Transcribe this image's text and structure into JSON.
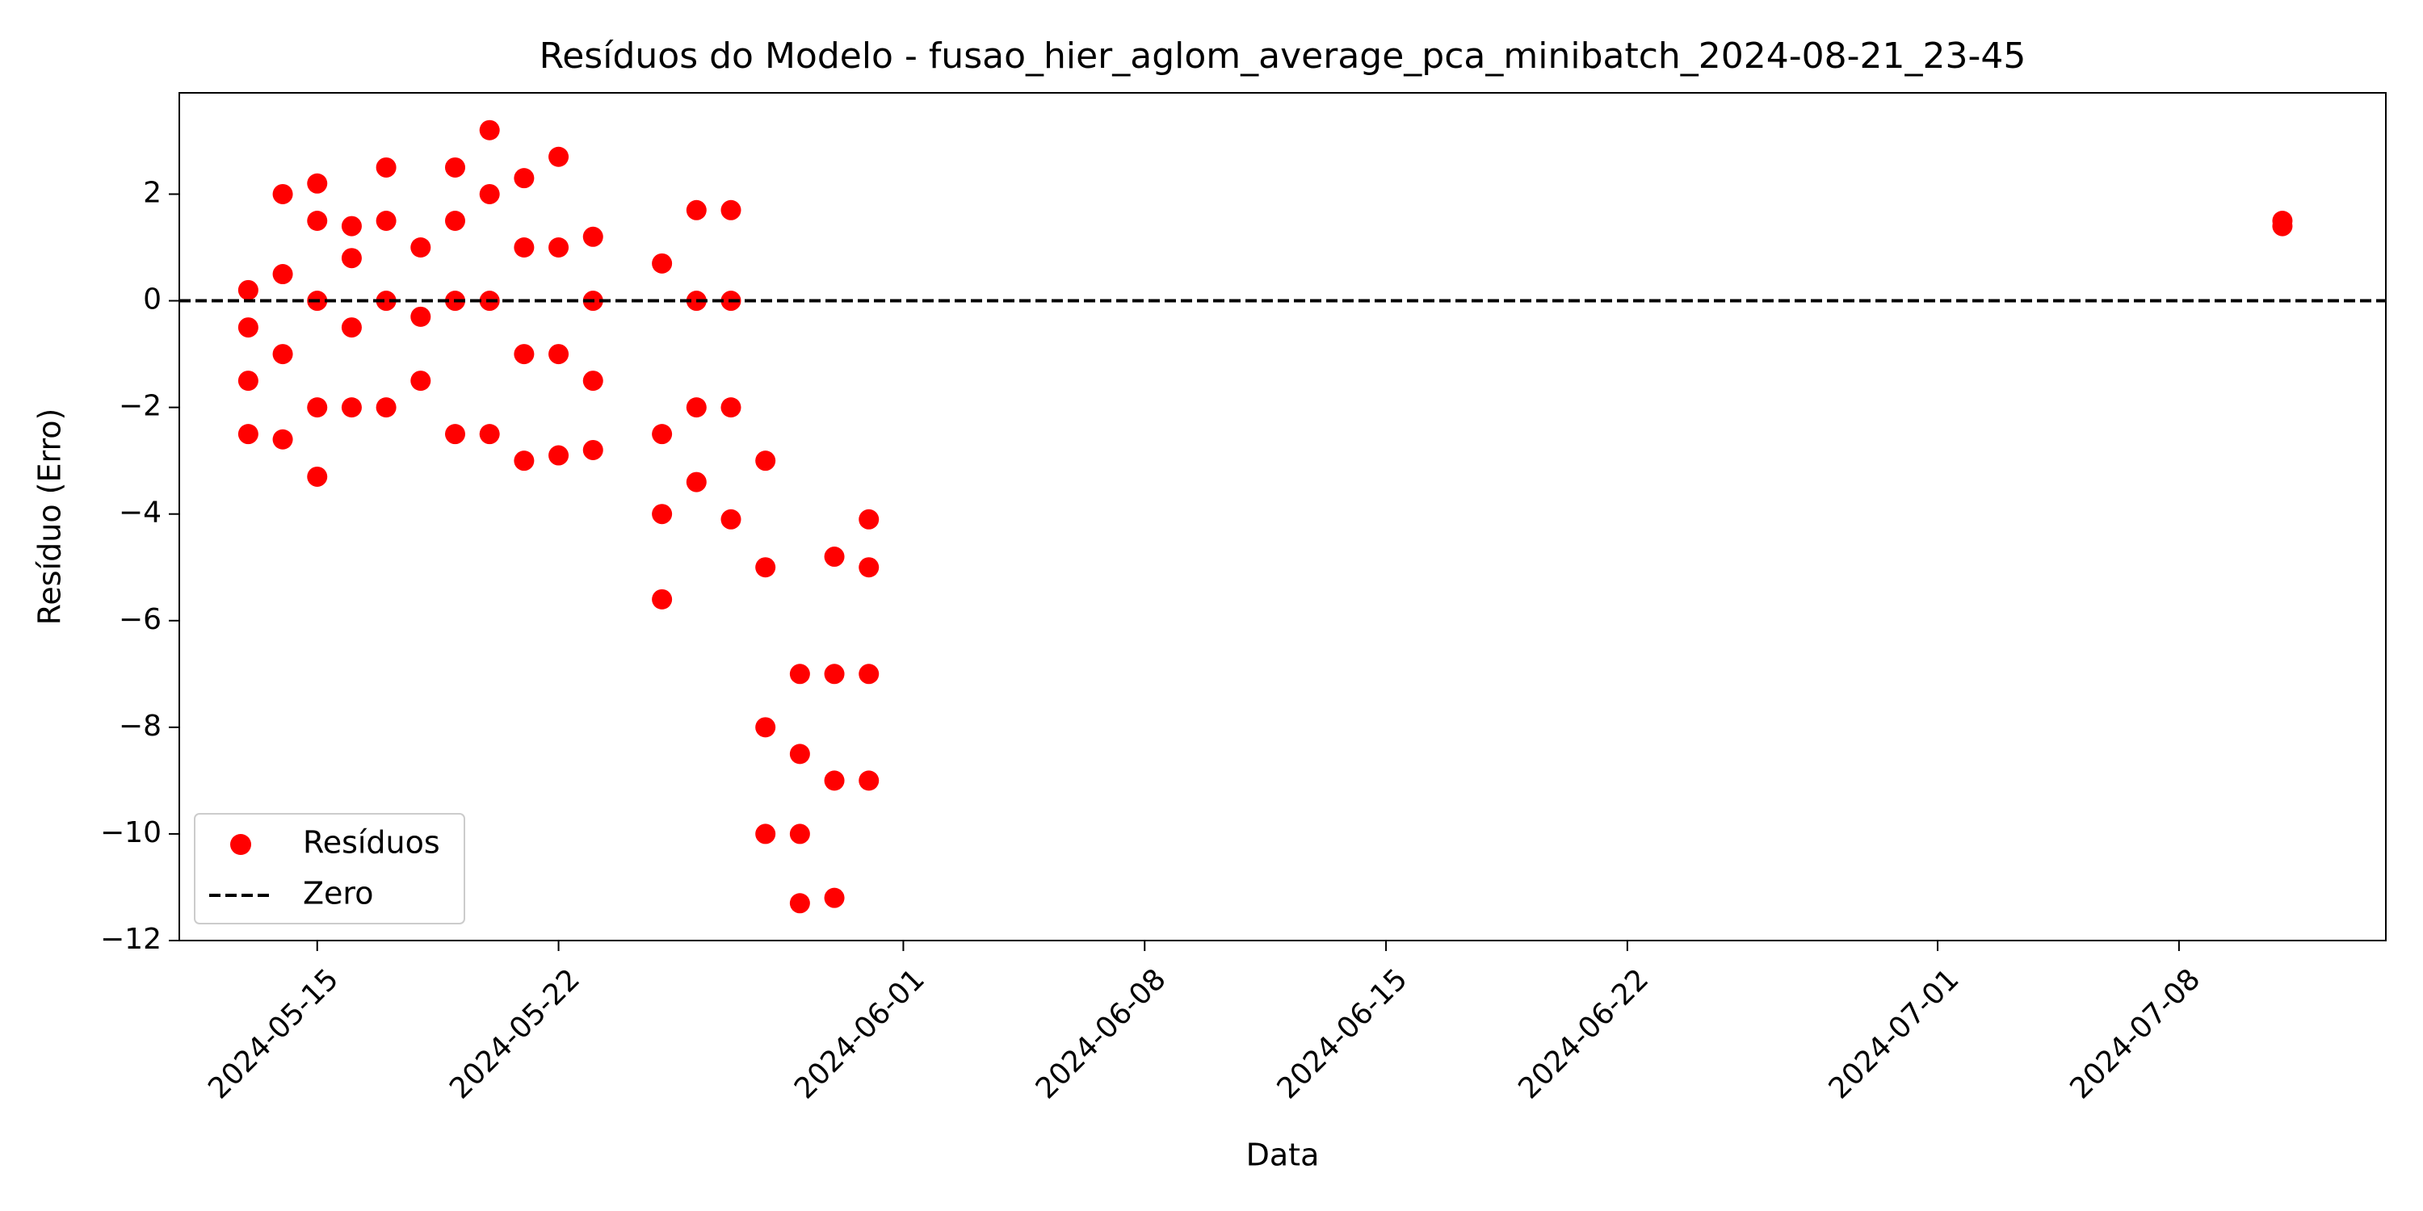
{
  "chart_data": {
    "type": "scatter",
    "title": "Resíduos do Modelo - fusao_hier_aglom_average_pca_minibatch_2024-08-21_23-45",
    "x_label": "Data",
    "y_label": "Resíduo (Erro)",
    "x": [
      "2024-05-13",
      "2024-05-13",
      "2024-05-13",
      "2024-05-13",
      "2024-05-14",
      "2024-05-14",
      "2024-05-14",
      "2024-05-14",
      "2024-05-15",
      "2024-05-15",
      "2024-05-15",
      "2024-05-15",
      "2024-05-15",
      "2024-05-16",
      "2024-05-16",
      "2024-05-16",
      "2024-05-16",
      "2024-05-17",
      "2024-05-17",
      "2024-05-17",
      "2024-05-17",
      "2024-05-18",
      "2024-05-18",
      "2024-05-18",
      "2024-05-19",
      "2024-05-19",
      "2024-05-19",
      "2024-05-19",
      "2024-05-20",
      "2024-05-20",
      "2024-05-20",
      "2024-05-20",
      "2024-05-21",
      "2024-05-21",
      "2024-05-21",
      "2024-05-21",
      "2024-05-22",
      "2024-05-22",
      "2024-05-22",
      "2024-05-22",
      "2024-05-23",
      "2024-05-23",
      "2024-05-23",
      "2024-05-23",
      "2024-05-25",
      "2024-05-25",
      "2024-05-25",
      "2024-05-25",
      "2024-05-26",
      "2024-05-26",
      "2024-05-26",
      "2024-05-26",
      "2024-05-27",
      "2024-05-27",
      "2024-05-27",
      "2024-05-27",
      "2024-05-28",
      "2024-05-28",
      "2024-05-28",
      "2024-05-28",
      "2024-05-29",
      "2024-05-29",
      "2024-05-29",
      "2024-05-29",
      "2024-05-30",
      "2024-05-30",
      "2024-05-30",
      "2024-05-30",
      "2024-05-31",
      "2024-05-31",
      "2024-05-31",
      "2024-05-31",
      "2024-07-11",
      "2024-07-11"
    ],
    "series": [
      {
        "name": "Resíduos",
        "color": "#ff0000",
        "values": [
          -2.5,
          -1.5,
          -0.5,
          0.2,
          -2.6,
          -1,
          0.5,
          2,
          -3.3,
          -2,
          0,
          1.5,
          2.2,
          -2,
          -0.5,
          0.8,
          1.4,
          -2,
          0,
          1.5,
          2.5,
          -1.5,
          -0.3,
          1,
          -2.5,
          0,
          1.5,
          2.5,
          -2.5,
          0,
          2,
          3.2,
          -3,
          -1,
          1,
          2.3,
          -2.9,
          -1,
          1,
          2.7,
          -2.8,
          -1.5,
          0,
          1.2,
          -5.6,
          -4,
          -2.5,
          0.7,
          -3.4,
          -2,
          0,
          1.7,
          -4.1,
          -2,
          0,
          1.7,
          -10,
          -8,
          -5,
          -3,
          -11.3,
          -10,
          -8.5,
          -7,
          -11.2,
          -9,
          -7,
          -4.8,
          -9,
          -7,
          -5,
          -4.1,
          1.4,
          1.5
        ]
      }
    ],
    "hline": {
      "name": "Zero",
      "value": 0,
      "color": "#000000",
      "style": "dashed"
    },
    "xlim": [
      "2024-05-11",
      "2024-07-14"
    ],
    "xticks": [
      "2024-05-15",
      "2024-05-22",
      "2024-06-01",
      "2024-06-08",
      "2024-06-15",
      "2024-06-22",
      "2024-07-01",
      "2024-07-08"
    ],
    "ylim": [
      -12,
      3.9
    ],
    "yticks": [
      {
        "value": -12,
        "label": "−12"
      },
      {
        "value": -10,
        "label": "−10"
      },
      {
        "value": -8,
        "label": "−8"
      },
      {
        "value": -6,
        "label": "−6"
      },
      {
        "value": -4,
        "label": "−4"
      },
      {
        "value": -2,
        "label": "−2"
      },
      0,
      2
    ],
    "legend": "lower left",
    "grid": false
  }
}
